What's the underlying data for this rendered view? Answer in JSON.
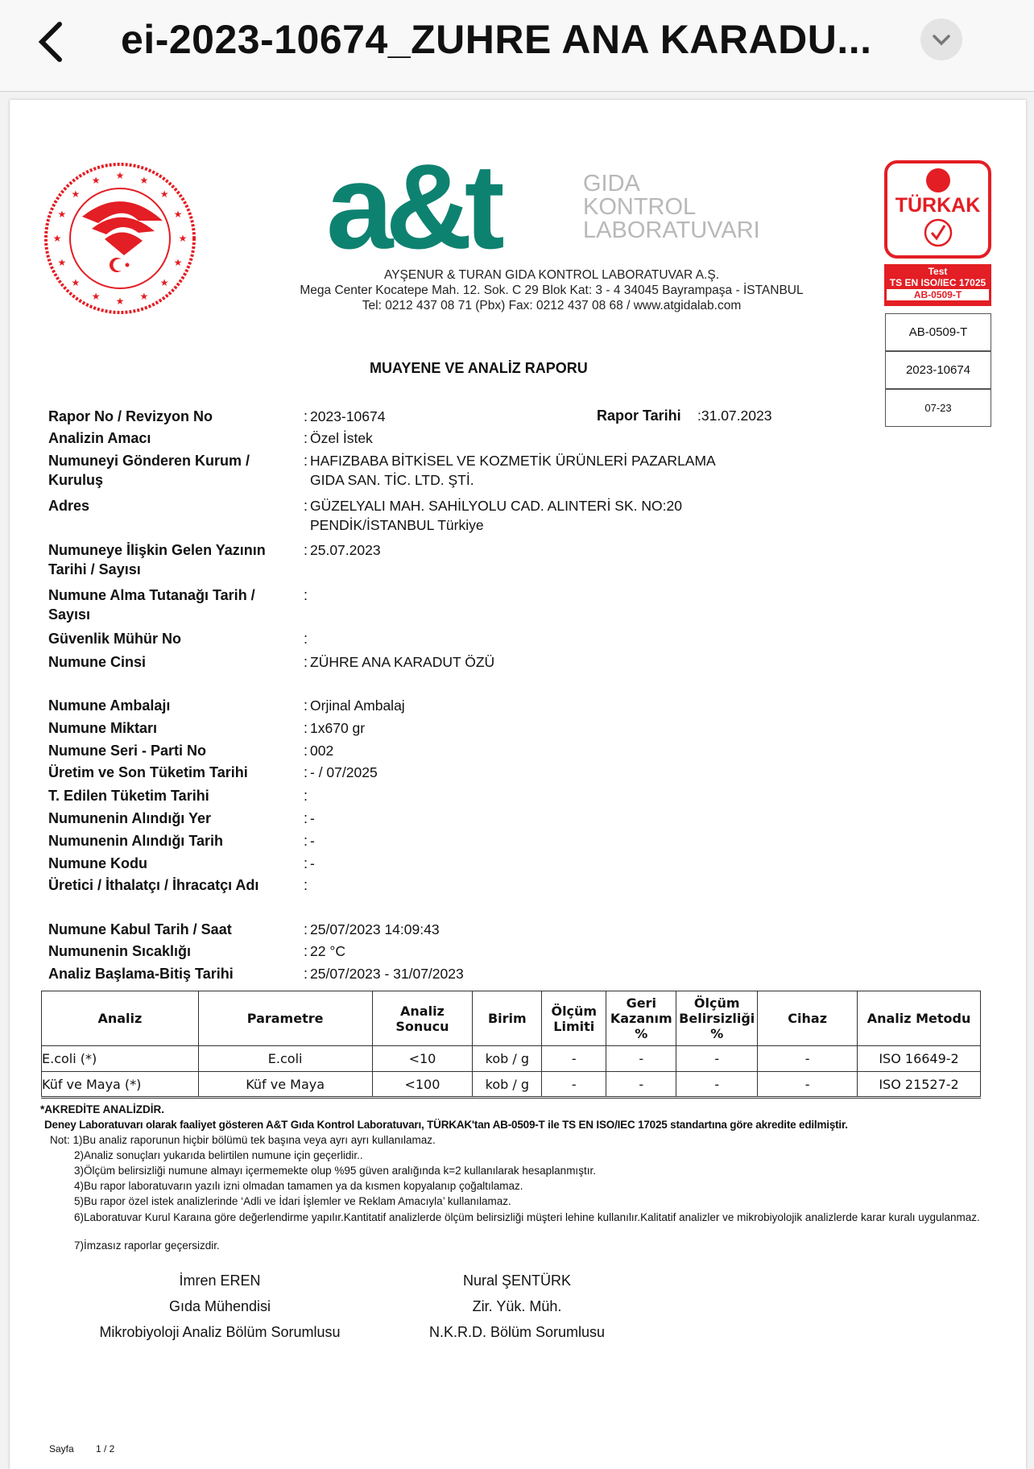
{
  "header": {
    "title": "ei-2023-10674_ZUHRE ANA KARADU..."
  },
  "logo": {
    "brand": "a&t",
    "line1": "GIDA",
    "line2": "KONTROL",
    "line3": "LABORATUVARI",
    "brand_color": "#0e8270"
  },
  "seal": {
    "text": "TÜRKİYE CUMHURİYETİ TARIM VE ORMAN BAKANLIĞI"
  },
  "turkak": {
    "name": "TÜRKAK",
    "test": "Test",
    "standard": "TS EN ISO/IEC 17025",
    "code": "AB-0509-T",
    "color": "#e31e24"
  },
  "company": {
    "name": "AYŞENUR & TURAN GIDA KONTROL LABORATUVAR A.Ş.",
    "address": "Mega Center Kocatepe Mah. 12. Sok. C 29 Blok Kat: 3 - 4 34045 Bayrampaşa - İSTANBUL",
    "contact": "Tel: 0212 437 08 71 (Pbx) Fax: 0212 437 08 68 / www.atgidalab.com"
  },
  "infobox": [
    "AB-0509-T",
    "2023-10674",
    "07-23"
  ],
  "report_title": "MUAYENE VE ANALİZ RAPORU",
  "report_date": {
    "label": "Rapor Tarihi",
    "value": ":31.07.2023"
  },
  "fields": [
    {
      "label": "Rapor No / Revizyon No",
      "value": "2023-10674"
    },
    {
      "label": "Analizin Amacı",
      "value": "Özel İstek"
    },
    {
      "label": "Numuneyi Gönderen Kurum /",
      "label2": "Kuruluş",
      "value": "HAFIZBABA BİTKİSEL VE KOZMETİK ÜRÜNLERİ PAZARLAMA",
      "value2": "GIDA SAN. TİC. LTD. ŞTİ."
    },
    {
      "label": "Adres",
      "value": "GÜZELYALI MAH. SAHİLYOLU CAD. ALINTERİ SK. NO:20",
      "value2": "PENDİK/İSTANBUL  Türkiye"
    },
    {
      "label": "Numuneye İlişkin Gelen Yazının",
      "label2": "Tarihi / Sayısı",
      "value": "25.07.2023"
    },
    {
      "label": "Numune Alma Tutanağı Tarih /",
      "label2": "Sayısı",
      "value": ""
    },
    {
      "label": "Güvenlik Mühür No",
      "value": ""
    },
    {
      "label": "Numune Cinsi",
      "value": "ZÜHRE ANA KARADUT ÖZÜ"
    },
    {
      "label": "Numune Ambalajı",
      "value": "Orjinal Ambalaj"
    },
    {
      "label": "Numune Miktarı",
      "value": "1x670 gr"
    },
    {
      "label": "Numune Seri - Parti No",
      "value": "002"
    },
    {
      "label": "Üretim ve Son Tüketim Tarihi",
      "value": " -     / 07/2025"
    },
    {
      "label": "T. Edilen Tüketim Tarihi",
      "value": ""
    },
    {
      "label": "Numunenin Alındığı Yer",
      "value": " -"
    },
    {
      "label": "Numunenin Alındığı Tarih",
      "value": " -"
    },
    {
      "label": "Numune Kodu",
      "value": " -"
    },
    {
      "label": "Üretici / İthalatçı / İhracatçı Adı",
      "value": ""
    },
    {
      "label": "Numune Kabul Tarih / Saat",
      "value": "25/07/2023 14:09:43"
    },
    {
      "label": "Numunenin Sıcaklığı",
      "value": "22 °C"
    },
    {
      "label": "Analiz Başlama-Bitiş Tarihi",
      "value": "25/07/2023 - 31/07/2023"
    }
  ],
  "table": {
    "headers": [
      "Analiz",
      "Parametre",
      "Analiz Sonucu",
      "Birim",
      "Ölçüm Limiti",
      "Geri Kazanım %",
      "Ölçüm Belirsizliği %",
      "Cihaz",
      "Analiz Metodu"
    ],
    "rows": [
      [
        "E.coli (*)",
        "E.coli",
        "<10",
        "kob / g",
        "-",
        "-",
        "-",
        "-",
        "ISO 16649-2"
      ],
      [
        "Küf ve Maya (*)",
        "Küf ve Maya",
        "<100",
        "kob / g",
        "-",
        "-",
        "-",
        "-",
        "ISO 21527-2"
      ]
    ]
  },
  "notes": {
    "accredited": "*AKREDİTE ANALİZDİR.",
    "statement": "Deney Laboratuvarı olarak faaliyet gösteren A&T Gıda Kontrol Laboratuvarı, TÜRKAK'tan AB-0509-T ile TS EN ISO/IEC 17025 standartına göre akredite edilmiştir.",
    "items": [
      "Not: 1)Bu analiz raporunun hiçbir bölümü tek başına veya ayrı ayrı kullanılamaz.",
      "2)Analiz sonuçları yukarıda belirtilen numune için geçerlidir..",
      "3)Ölçüm belirsizliği numune almayı içermemekte olup %95 güven aralığında k=2 kullanılarak hesaplanmıştır.",
      "4)Bu rapor laboratuvarın yazılı izni olmadan tamamen ya da  kısmen kopyalanıp çoğaltılamaz.",
      "5)Bu rapor özel istek analizlerinde ‘Adli ve İdari İşlemler ve Reklam Amacıyla’ kullanılamaz.",
      "6)Laboratuvar Kurul Karaına göre değerlendirme yapılır.Kantitatif analizlerde ölçüm belirsizliği müşteri lehine kullanılır.Kalitatif analizler ve mikrobiyolojik analizlerde karar kuralı uygulanmaz.",
      "7)İmzasız raporlar geçersizdir."
    ]
  },
  "signatures": [
    {
      "name": "İmren EREN",
      "title": "Gıda Mühendisi",
      "role": "Mikrobiyoloji Analiz Bölüm Sorumlusu"
    },
    {
      "name": "Nural ŞENTÜRK",
      "title": "Zir. Yük. Müh.",
      "role": "N.K.R.D. Bölüm Sorumlusu"
    }
  ],
  "footer": {
    "page_label": "Sayfa",
    "page": "1 / 2"
  }
}
